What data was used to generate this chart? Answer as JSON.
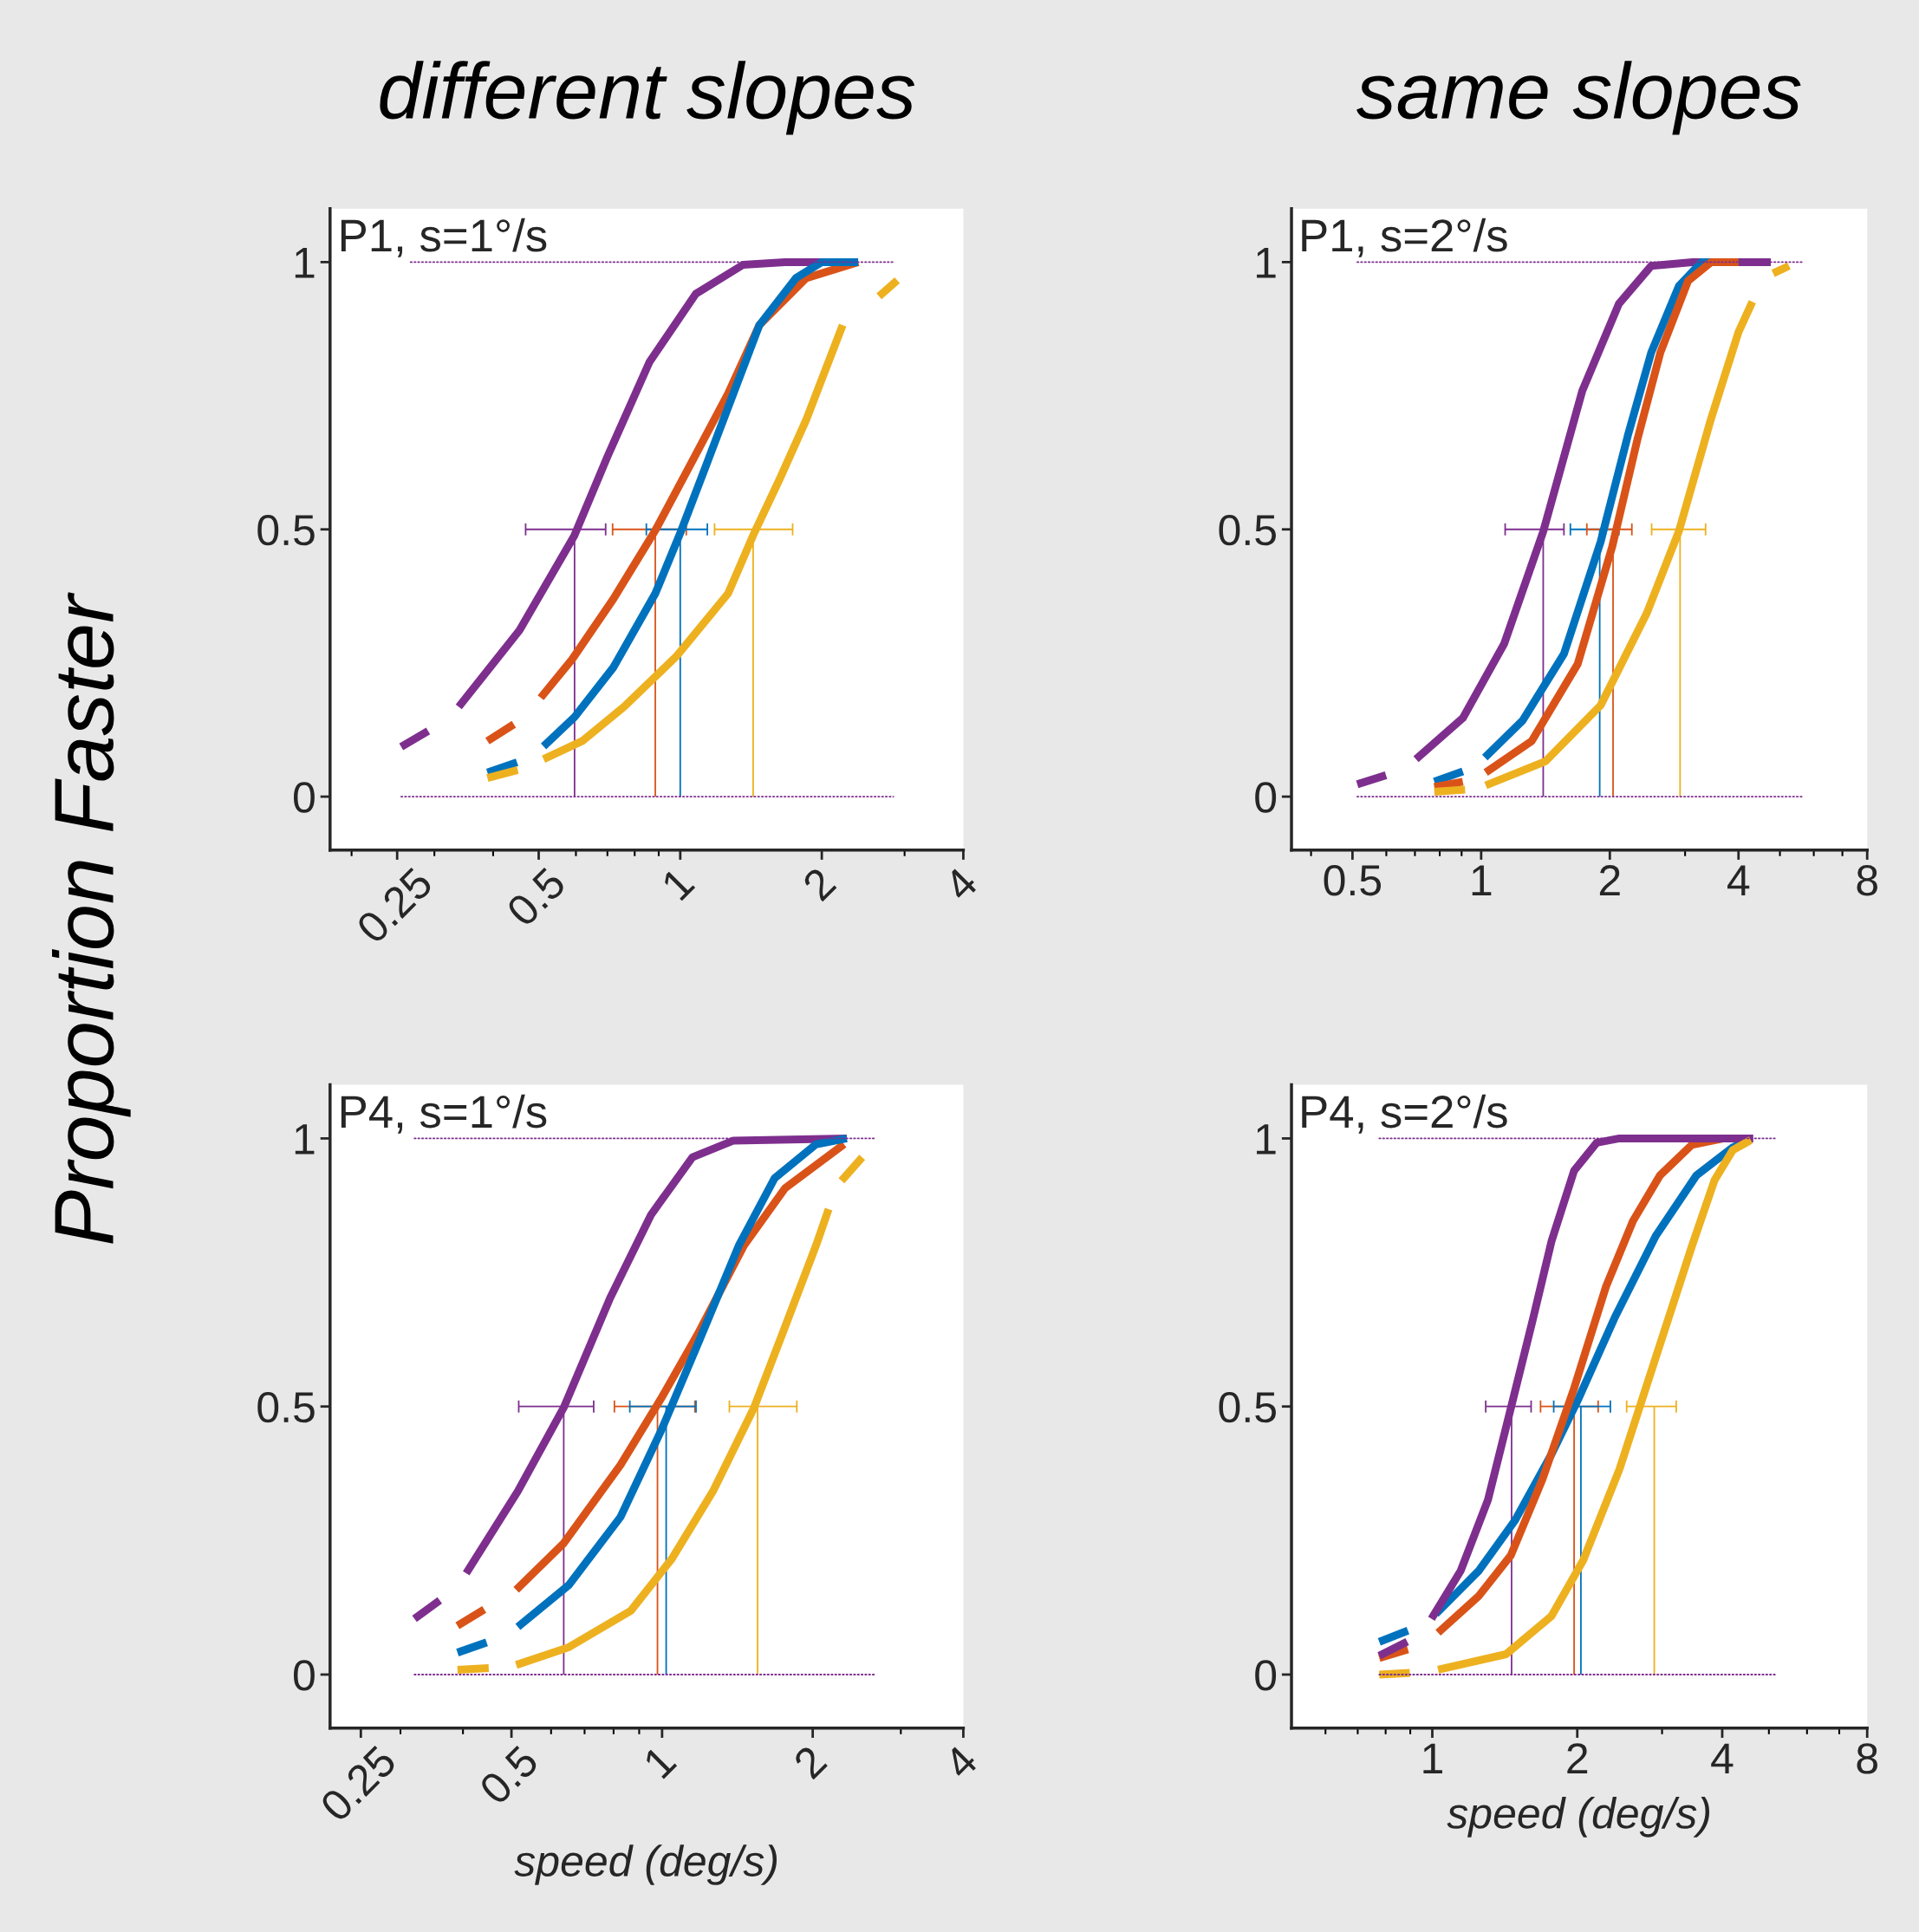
{
  "chart_data": [
    {
      "type": "line",
      "title": "different slopes",
      "ylabel": "Proportion Faster",
      "annotations": [
        "P1, s=1°/s"
      ],
      "log": "x",
      "xlim": [
        0.18,
        4
      ],
      "ylim": [
        -0.1,
        1.1
      ],
      "xticks": [
        0.25,
        0.5,
        1,
        2,
        4
      ],
      "yticks": [
        0,
        0.5,
        1
      ],
      "grid": false,
      "legend": false,
      "series": [
        {
          "line_style": "dotted",
          "color": "#7e2f8e",
          "x": [
            0.267,
            2.84
          ],
          "values": [
            1,
            1
          ]
        },
        {
          "line_style": "dotted",
          "color": "#7e2f8e",
          "x": [
            0.255,
            2.84
          ],
          "values": [
            0,
            0
          ]
        },
        {
          "line_style": "dashed",
          "color": "#7e2f8e",
          "x": [
            0.255,
            0.295
          ],
          "values": [
            0.093,
            0.126
          ]
        },
        {
          "line_style": "solid",
          "color": "#7e2f8e",
          "x": [
            0.338,
            0.455,
            0.595,
            0.7,
            0.86,
            1.08,
            1.36,
            1.67,
            2.38
          ],
          "values": [
            0.168,
            0.311,
            0.488,
            0.636,
            0.813,
            0.941,
            0.995,
            1.0,
            1.0
          ]
        },
        {
          "line_style": "dashed",
          "color": "#d95319",
          "x": [
            0.389,
            0.453
          ],
          "values": [
            0.104,
            0.141
          ]
        },
        {
          "line_style": "solid",
          "color": "#d95319",
          "x": [
            0.505,
            0.589,
            0.721,
            0.885,
            1.058,
            1.264,
            1.473,
            1.853,
            2.39
          ],
          "values": [
            0.185,
            0.257,
            0.37,
            0.498,
            0.626,
            0.754,
            0.882,
            0.97,
            1.0
          ]
        },
        {
          "line_style": "dashed",
          "color": "#0072bd",
          "x": [
            0.389,
            0.453
          ],
          "values": [
            0.045,
            0.065
          ]
        },
        {
          "line_style": "solid",
          "color": "#0072bd",
          "x": [
            0.512,
            0.596,
            0.721,
            0.885,
            1.0,
            1.142,
            1.297,
            1.473,
            1.761,
            2.0,
            2.39
          ],
          "values": [
            0.094,
            0.149,
            0.242,
            0.38,
            0.493,
            0.626,
            0.754,
            0.882,
            0.97,
            1.0,
            1.0
          ]
        },
        {
          "line_style": "dashed",
          "color": "#edb120",
          "x": [
            0.389,
            0.453
          ],
          "values": [
            0.035,
            0.05
          ]
        },
        {
          "line_style": "solid",
          "color": "#edb120",
          "x": [
            0.512,
            0.619,
            0.759,
            0.98,
            1.264,
            1.436,
            1.631,
            1.853,
            2.215
          ],
          "values": [
            0.07,
            0.104,
            0.168,
            0.262,
            0.38,
            0.493,
            0.596,
            0.705,
            0.882
          ]
        },
        {
          "line_style": "dashed",
          "color": "#edb120",
          "x": [
            2.647,
            2.894
          ],
          "values": [
            0.936,
            0.966
          ]
        },
        {
          "line_style": "solid",
          "color": "#7e2f8e",
          "x": [
            0.596,
            0.596
          ],
          "values": [
            0,
            0.5
          ],
          "xerrors": [
            null,
            [
              0.469,
              0.694
            ]
          ]
        },
        {
          "line_style": "solid",
          "color": "#d95319",
          "x": [
            0.885,
            0.885
          ],
          "values": [
            0,
            0.5
          ],
          "xerrors": [
            null,
            [
              0.718,
              1.03
            ]
          ]
        },
        {
          "line_style": "solid",
          "color": "#0072bd",
          "x": [
            1.0,
            1.0
          ],
          "values": [
            0,
            0.5
          ],
          "xerrors": [
            null,
            [
              0.847,
              1.142
            ]
          ]
        },
        {
          "line_style": "solid",
          "color": "#edb120",
          "x": [
            1.429,
            1.429
          ],
          "values": [
            0,
            0.5
          ],
          "xerrors": [
            null,
            [
              1.183,
              1.734
            ]
          ]
        }
      ]
    },
    {
      "type": "line",
      "title": "same slopes",
      "annotations": [
        "P1, s=2°/s"
      ],
      "log": "x",
      "xlim": [
        0.36,
        8
      ],
      "ylim": [
        -0.1,
        1.1
      ],
      "xticks": [
        0.5,
        1,
        2,
        4,
        8
      ],
      "yticks": [
        0,
        0.5,
        1
      ],
      "grid": false,
      "legend": false,
      "series": [
        {
          "line_style": "dotted",
          "color": "#7e2f8e",
          "x": [
            0.513,
            5.66
          ],
          "values": [
            1,
            1
          ]
        },
        {
          "line_style": "dotted",
          "color": "#7e2f8e",
          "x": [
            0.513,
            5.66
          ],
          "values": [
            0,
            0
          ]
        },
        {
          "line_style": "dashed",
          "color": "#7e2f8e",
          "x": [
            0.513,
            0.599
          ],
          "values": [
            0.023,
            0.04
          ]
        },
        {
          "line_style": "solid",
          "color": "#7e2f8e",
          "x": [
            0.704,
            0.906,
            1.132,
            1.397,
            1.724,
            2.1,
            2.5,
            3.12,
            4.76
          ],
          "values": [
            0.07,
            0.147,
            0.286,
            0.496,
            0.759,
            0.922,
            0.993,
            1.0,
            1.0
          ]
        },
        {
          "line_style": "dashed",
          "color": "#0072bd",
          "x": [
            0.777,
            0.906
          ],
          "values": [
            0.028,
            0.047
          ]
        },
        {
          "line_style": "solid",
          "color": "#0072bd",
          "x": [
            1.02,
            1.249,
            1.562,
            1.904,
            2.208,
            2.5,
            2.9,
            3.28,
            4.0
          ],
          "values": [
            0.073,
            0.142,
            0.267,
            0.477,
            0.678,
            0.831,
            0.955,
            1.0,
            1.0
          ]
        },
        {
          "line_style": "dashed",
          "color": "#d95319",
          "x": [
            0.777,
            0.906
          ],
          "values": [
            0.018,
            0.028
          ]
        },
        {
          "line_style": "solid",
          "color": "#d95319",
          "x": [
            1.025,
            1.313,
            1.682,
            2.025,
            2.32,
            2.626,
            3.05,
            3.45,
            4.0
          ],
          "values": [
            0.045,
            0.104,
            0.248,
            0.467,
            0.668,
            0.831,
            0.965,
            1.0,
            1.0
          ]
        },
        {
          "line_style": "dashed",
          "color": "#edb120",
          "x": [
            0.777,
            0.917
          ],
          "values": [
            0.009,
            0.013
          ]
        },
        {
          "line_style": "solid",
          "color": "#edb120",
          "x": [
            1.025,
            1.414,
            1.904,
            2.44,
            2.9,
            3.45,
            4.0,
            4.31
          ],
          "values": [
            0.021,
            0.066,
            0.171,
            0.343,
            0.496,
            0.707,
            0.869,
            0.926
          ]
        },
        {
          "line_style": "dashed",
          "color": "#edb120",
          "x": [
            4.82,
            5.25
          ],
          "values": [
            0.979,
            0.993
          ]
        },
        {
          "line_style": "solid",
          "color": "#7e2f8e",
          "x": [
            1.397,
            1.397
          ],
          "values": [
            0,
            0.5
          ],
          "xerrors": [
            null,
            [
              1.138,
              1.562
            ]
          ]
        },
        {
          "line_style": "solid",
          "color": "#0072bd",
          "x": [
            1.894,
            1.894
          ],
          "values": [
            0,
            0.5
          ],
          "xerrors": [
            null,
            [
              1.617,
              2.1
            ]
          ]
        },
        {
          "line_style": "solid",
          "color": "#d95319",
          "x": [
            2.035,
            2.035
          ],
          "values": [
            0,
            0.5
          ],
          "xerrors": [
            null,
            [
              1.767,
              2.252
            ]
          ]
        },
        {
          "line_style": "solid",
          "color": "#edb120",
          "x": [
            2.92,
            2.92
          ],
          "values": [
            0,
            0.5
          ],
          "xerrors": [
            null,
            [
              2.505,
              3.35
            ]
          ]
        }
      ]
    },
    {
      "type": "line",
      "xlabel": "speed (deg/s)",
      "annotations": [
        "P4, s=1°/s"
      ],
      "log": "x",
      "xlim": [
        0.217,
        4
      ],
      "ylim": [
        -0.1,
        1.1
      ],
      "xticks": [
        0.25,
        0.5,
        1,
        2,
        4
      ],
      "yticks": [
        0,
        0.5,
        1
      ],
      "grid": false,
      "legend": false,
      "series": [
        {
          "line_style": "dotted",
          "color": "#7e2f8e",
          "x": [
            0.32,
            2.68
          ],
          "values": [
            1,
            1
          ]
        },
        {
          "line_style": "dotted",
          "color": "#7e2f8e",
          "x": [
            0.32,
            2.68
          ],
          "values": [
            0,
            0
          ]
        },
        {
          "line_style": "dashed",
          "color": "#7e2f8e",
          "x": [
            0.32,
            0.365
          ],
          "values": [
            0.104,
            0.143
          ]
        },
        {
          "line_style": "solid",
          "color": "#7e2f8e",
          "x": [
            0.406,
            0.515,
            0.636,
            0.787,
            0.951,
            1.15,
            1.389,
            2.34
          ],
          "values": [
            0.189,
            0.342,
            0.498,
            0.702,
            0.858,
            0.965,
            0.996,
            1.0
          ]
        },
        {
          "line_style": "dashed",
          "color": "#d95319",
          "x": [
            0.39,
            0.446
          ],
          "values": [
            0.091,
            0.124
          ]
        },
        {
          "line_style": "solid",
          "color": "#d95319",
          "x": [
            0.511,
            0.636,
            0.826,
            1.0,
            1.177,
            1.457,
            1.761,
            2.31
          ],
          "values": [
            0.158,
            0.245,
            0.391,
            0.518,
            0.634,
            0.8,
            0.907,
            0.989
          ]
        },
        {
          "line_style": "dashed",
          "color": "#0072bd",
          "x": [
            0.39,
            0.446
          ],
          "values": [
            0.041,
            0.06
          ]
        },
        {
          "line_style": "solid",
          "color": "#0072bd",
          "x": [
            0.515,
            0.651,
            0.826,
            1.0,
            1.177,
            1.423,
            1.679,
            2.03,
            2.34
          ],
          "values": [
            0.089,
            0.167,
            0.294,
            0.459,
            0.615,
            0.8,
            0.926,
            0.989,
            1.0
          ]
        },
        {
          "line_style": "dashed",
          "color": "#edb120",
          "x": [
            0.39,
            0.452
          ],
          "values": [
            0.009,
            0.012
          ]
        },
        {
          "line_style": "solid",
          "color": "#edb120",
          "x": [
            0.511,
            0.651,
            0.866,
            1.046,
            1.264,
            1.527,
            1.802,
            2.03,
            2.152
          ],
          "values": [
            0.018,
            0.051,
            0.119,
            0.216,
            0.342,
            0.498,
            0.673,
            0.8,
            0.868
          ]
        },
        {
          "line_style": "dashed",
          "color": "#edb120",
          "x": [
            2.283,
            2.54
          ],
          "values": [
            0.921,
            0.97
          ]
        },
        {
          "line_style": "solid",
          "color": "#7e2f8e",
          "x": [
            0.636,
            0.636
          ],
          "values": [
            0,
            0.5
          ],
          "xerrors": [
            null,
            [
              0.517,
              0.73
            ]
          ]
        },
        {
          "line_style": "solid",
          "color": "#d95319",
          "x": [
            0.979,
            0.979
          ],
          "values": [
            0,
            0.5
          ],
          "xerrors": [
            null,
            [
              0.803,
              1.163
            ]
          ]
        },
        {
          "line_style": "solid",
          "color": "#0072bd",
          "x": [
            1.019,
            1.019
          ],
          "values": [
            0,
            0.5
          ],
          "xerrors": [
            null,
            [
              0.862,
              1.169
            ]
          ]
        },
        {
          "line_style": "solid",
          "color": "#edb120",
          "x": [
            1.552,
            1.552
          ],
          "values": [
            0,
            0.5
          ],
          "xerrors": [
            null,
            [
              1.363,
              1.859
            ]
          ]
        }
      ]
    },
    {
      "type": "line",
      "xlabel": "speed (deg/s)",
      "annotations": [
        "P4, s=2°/s"
      ],
      "log": "x",
      "xlim": [
        0.51,
        8
      ],
      "ylim": [
        -0.1,
        1.1
      ],
      "xticks": [
        1,
        2,
        4,
        8
      ],
      "yticks": [
        0,
        0.5,
        1
      ],
      "grid": false,
      "legend": false,
      "series": [
        {
          "line_style": "dotted",
          "color": "#7e2f8e",
          "x": [
            0.776,
            5.17
          ],
          "values": [
            1,
            1
          ]
        },
        {
          "line_style": "dotted",
          "color": "#7e2f8e",
          "x": [
            0.776,
            5.17
          ],
          "values": [
            0,
            0
          ]
        },
        {
          "line_style": "dashed",
          "color": "#0072bd",
          "x": [
            0.776,
            0.89
          ],
          "values": [
            0.061,
            0.082
          ]
        },
        {
          "line_style": "solid",
          "color": "#0072bd",
          "x": [
            1.017,
            1.25,
            1.486,
            1.768,
            2.013,
            2.393,
            2.91,
            3.535,
            4.205,
            4.585
          ],
          "values": [
            0.113,
            0.194,
            0.288,
            0.411,
            0.515,
            0.666,
            0.818,
            0.931,
            0.983,
            0.999
          ]
        },
        {
          "line_style": "dashed",
          "color": "#d95319",
          "x": [
            0.776,
            0.89
          ],
          "values": [
            0.031,
            0.047
          ]
        },
        {
          "line_style": "solid",
          "color": "#d95319",
          "x": [
            1.028,
            1.25,
            1.455,
            1.693,
            1.97,
            2.293,
            2.61,
            2.97,
            3.46,
            4.03
          ],
          "values": [
            0.078,
            0.147,
            0.222,
            0.364,
            0.534,
            0.723,
            0.846,
            0.931,
            0.988,
            1.0
          ]
        },
        {
          "line_style": "dashed",
          "color": "#7e2f8e",
          "x": [
            0.776,
            0.89
          ],
          "values": [
            0.035,
            0.062
          ]
        },
        {
          "line_style": "solid",
          "color": "#7e2f8e",
          "x": [
            0.996,
            1.146,
            1.305,
            1.455,
            1.621,
            1.768,
            1.97,
            2.195,
            2.447,
            4.64
          ],
          "values": [
            0.104,
            0.194,
            0.326,
            0.496,
            0.666,
            0.808,
            0.94,
            0.992,
            1.0,
            1.0
          ]
        },
        {
          "line_style": "dashed",
          "color": "#edb120",
          "x": [
            0.776,
            0.898
          ],
          "values": [
            0.0,
            0.003
          ]
        },
        {
          "line_style": "solid",
          "color": "#edb120",
          "x": [
            1.028,
            1.423,
            1.768,
            2.057,
            2.447,
            2.91,
            3.46,
            3.855,
            4.205,
            4.585
          ],
          "values": [
            0.009,
            0.038,
            0.109,
            0.213,
            0.383,
            0.591,
            0.799,
            0.922,
            0.978,
            0.997
          ]
        },
        {
          "line_style": "solid",
          "color": "#7e2f8e",
          "x": [
            1.461,
            1.461
          ],
          "values": [
            0,
            0.5
          ],
          "xerrors": [
            null,
            [
              1.291,
              1.604
            ]
          ]
        },
        {
          "line_style": "solid",
          "color": "#d95319",
          "x": [
            1.97,
            1.97
          ],
          "values": [
            0,
            0.5
          ],
          "xerrors": [
            null,
            [
              1.678,
              2.21
            ]
          ]
        },
        {
          "line_style": "solid",
          "color": "#0072bd",
          "x": [
            2.035,
            2.035
          ],
          "values": [
            0,
            0.5
          ],
          "xerrors": [
            null,
            [
              1.787,
              2.343
            ]
          ]
        },
        {
          "line_style": "solid",
          "color": "#edb120",
          "x": [
            2.89,
            2.89
          ],
          "values": [
            0,
            0.5
          ],
          "xerrors": [
            null,
            [
              2.533,
              3.21
            ]
          ]
        }
      ]
    }
  ]
}
